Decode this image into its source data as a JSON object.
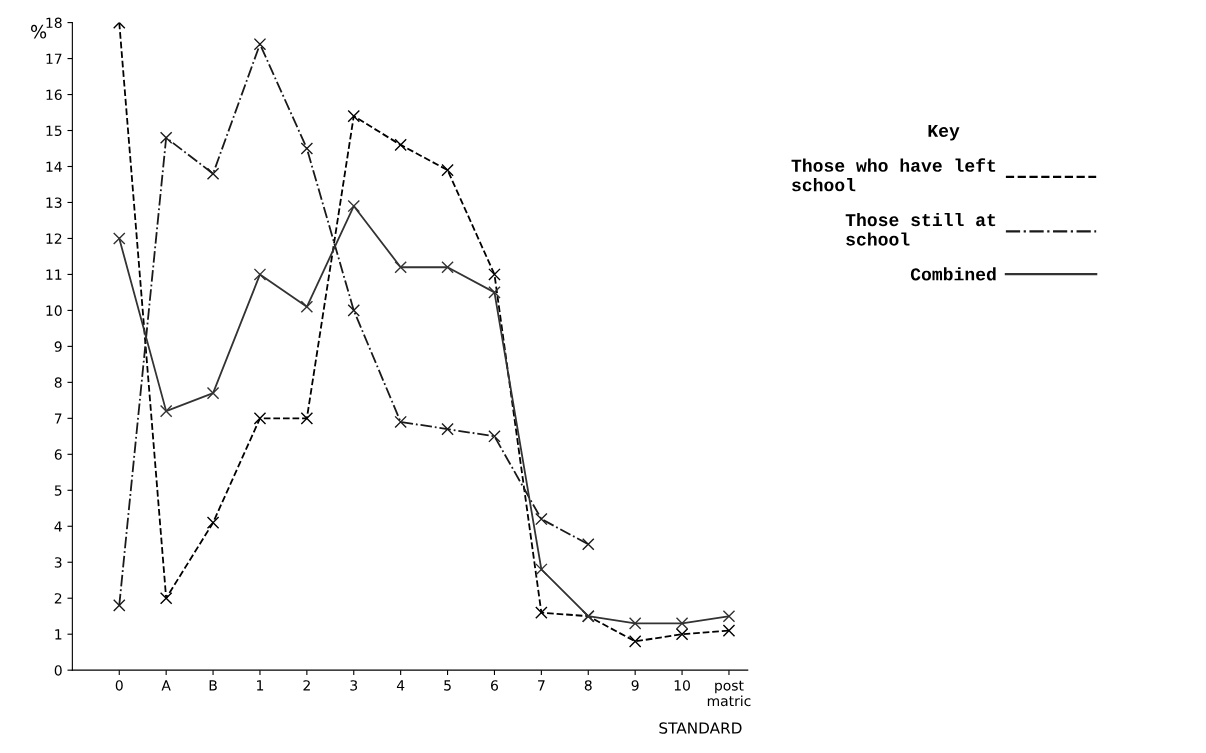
{
  "chart_data": {
    "type": "line",
    "ylabel": "%",
    "xlabel": "STANDARD",
    "legend_title": "Key",
    "legend": "right",
    "grid": false,
    "marker": "cross",
    "categories": [
      "0",
      "A",
      "B",
      "1",
      "2",
      "3",
      "4",
      "5",
      "6",
      "7",
      "8",
      "9",
      "10",
      "post\nmatric"
    ],
    "ylim": [
      0,
      18
    ],
    "yticks": [
      0,
      1,
      2,
      3,
      4,
      5,
      6,
      7,
      8,
      9,
      10,
      11,
      12,
      13,
      14,
      15,
      16,
      17,
      18
    ],
    "series": [
      {
        "name": "Those who have left\nschool",
        "color": "#000000",
        "line_style": "dashed",
        "values": [
          18,
          2.0,
          4.1,
          7.0,
          7.0,
          15.4,
          14.6,
          13.9,
          11.0,
          1.6,
          1.5,
          0.8,
          1.0,
          1.1
        ]
      },
      {
        "name": "Those still at\nschool",
        "color": "#1a1a1a",
        "line_style": "dashdot",
        "values": [
          1.8,
          14.8,
          13.8,
          17.4,
          14.5,
          10.0,
          6.9,
          6.7,
          6.5,
          4.2,
          3.5,
          null,
          null,
          null
        ]
      },
      {
        "name": "Combined",
        "color": "#333333",
        "line_style": "solid",
        "values": [
          12,
          7.2,
          7.7,
          11.0,
          10.1,
          12.9,
          11.2,
          11.2,
          10.5,
          2.8,
          1.5,
          1.3,
          1.3,
          1.5
        ]
      }
    ]
  }
}
